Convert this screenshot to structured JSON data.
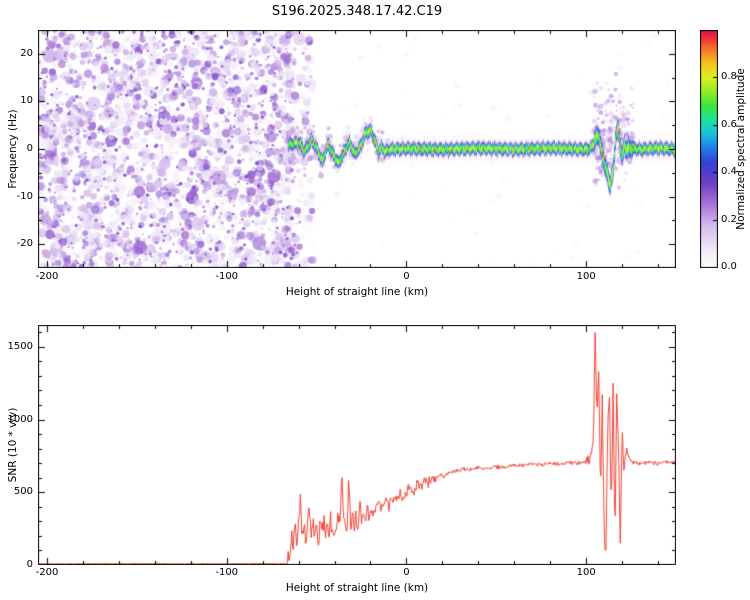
{
  "title": "S196.2025.348.17.42.C19",
  "chart_data": [
    {
      "type": "heatmap",
      "name": "spectrogram-panel",
      "xlabel": "Height of straight line (km)",
      "ylabel": "Frequency (Hz)",
      "xlim": [
        -205,
        150
      ],
      "ylim": [
        -25,
        25
      ],
      "xticks": [
        -200,
        -100,
        0,
        100
      ],
      "yticks": [
        -20,
        -10,
        0,
        10,
        20
      ],
      "xminor": 20,
      "yminor": 5,
      "colorbar": {
        "label": "Normalized spectral amplitude",
        "ticks": [
          0.0,
          0.2,
          0.4,
          0.6,
          0.8
        ],
        "range": [
          0,
          1
        ]
      },
      "colormap_stops": [
        [
          0.0,
          "#ffffff"
        ],
        [
          0.08,
          "#f0e9f8"
        ],
        [
          0.18,
          "#d4b9ec"
        ],
        [
          0.28,
          "#a06ad4"
        ],
        [
          0.36,
          "#6c3ec6"
        ],
        [
          0.44,
          "#3440d6"
        ],
        [
          0.5,
          "#2079e8"
        ],
        [
          0.56,
          "#16c0e0"
        ],
        [
          0.62,
          "#1fdf9f"
        ],
        [
          0.68,
          "#3ae43c"
        ],
        [
          0.74,
          "#8fec28"
        ],
        [
          0.8,
          "#d8f022"
        ],
        [
          0.86,
          "#f4c61e"
        ],
        [
          0.92,
          "#f4772a"
        ],
        [
          0.97,
          "#ee2c3c"
        ],
        [
          1.0,
          "#d41648"
        ]
      ],
      "noise_region": {
        "x_range": [
          -205,
          -62
        ],
        "density": 2600,
        "value_range": [
          0.04,
          0.34
        ]
      },
      "signal": {
        "x_range": [
          -66,
          150
        ],
        "core_sigma_hz": 0.9,
        "halo_sigma_hz": 2.8,
        "trace": [
          [
            -66,
            1
          ],
          [
            -60,
            1.5
          ],
          [
            -57,
            -0.5
          ],
          [
            -53,
            2
          ],
          [
            -50,
            0
          ],
          [
            -47,
            -2.5
          ],
          [
            -44,
            1
          ],
          [
            -41,
            -1
          ],
          [
            -38,
            -3
          ],
          [
            -35,
            -0.5
          ],
          [
            -32,
            1.5
          ],
          [
            -29,
            -1
          ],
          [
            -26,
            0.5
          ],
          [
            -23,
            3.5
          ],
          [
            -20,
            4
          ],
          [
            -18,
            2
          ],
          [
            -16,
            -0.5
          ],
          [
            -14,
            0.5
          ],
          [
            -12,
            -0.5
          ],
          [
            -10,
            0
          ],
          [
            0,
            0.2
          ],
          [
            20,
            0
          ],
          [
            40,
            0.3
          ],
          [
            60,
            0
          ],
          [
            80,
            0.3
          ],
          [
            100,
            0
          ],
          [
            103,
            0.5
          ],
          [
            105,
            2.5
          ],
          [
            107,
            3
          ],
          [
            108,
            0
          ],
          [
            110,
            -3
          ],
          [
            112,
            -6
          ],
          [
            113,
            -7.5
          ],
          [
            115,
            -4
          ],
          [
            116,
            2
          ],
          [
            117,
            4.5
          ],
          [
            118,
            3
          ],
          [
            119,
            0
          ],
          [
            120,
            -1.5
          ],
          [
            121,
            1
          ],
          [
            122,
            0
          ],
          [
            125,
            0.3
          ],
          [
            130,
            0
          ],
          [
            140,
            0.3
          ],
          [
            150,
            0
          ]
        ]
      },
      "disturbance": {
        "x_range": [
          104,
          126
        ]
      }
    },
    {
      "type": "line",
      "name": "snr-panel",
      "xlabel": "Height of straight line (km)",
      "ylabel": "SNR (10 * v/v)",
      "xlim": [
        -205,
        150
      ],
      "ylim": [
        0,
        1650
      ],
      "xticks": [
        -200,
        -100,
        0,
        100
      ],
      "yticks": [
        0,
        500,
        1000,
        1500
      ],
      "xminor": 20,
      "yminor": 100,
      "line_color": "#ee3426",
      "points": [
        [
          -205,
          8
        ],
        [
          -150,
          9
        ],
        [
          -100,
          8
        ],
        [
          -80,
          9
        ],
        [
          -70,
          8
        ],
        [
          -67,
          10
        ],
        [
          -65,
          60
        ],
        [
          -64,
          220
        ],
        [
          -63,
          90
        ],
        [
          -62,
          330
        ],
        [
          -61,
          120
        ],
        [
          -60,
          300
        ],
        [
          -59,
          460
        ],
        [
          -58,
          150
        ],
        [
          -57,
          310
        ],
        [
          -56,
          90
        ],
        [
          -55,
          340
        ],
        [
          -54,
          420
        ],
        [
          -53,
          140
        ],
        [
          -52,
          310
        ],
        [
          -51,
          180
        ],
        [
          -50,
          260
        ],
        [
          -49,
          120
        ],
        [
          -48,
          300
        ],
        [
          -47,
          200
        ],
        [
          -46,
          330
        ],
        [
          -45,
          150
        ],
        [
          -44,
          280
        ],
        [
          -43,
          210
        ],
        [
          -42,
          320
        ],
        [
          -41,
          190
        ],
        [
          -40,
          280
        ],
        [
          -39,
          240
        ],
        [
          -38,
          330
        ],
        [
          -37,
          260
        ],
        [
          -36,
          640
        ],
        [
          -35,
          320
        ],
        [
          -34,
          240
        ],
        [
          -33,
          300
        ],
        [
          -32,
          610
        ],
        [
          -31,
          300
        ],
        [
          -30,
          340
        ],
        [
          -29,
          260
        ],
        [
          -28,
          350
        ],
        [
          -27,
          280
        ],
        [
          -26,
          390
        ],
        [
          -25,
          310
        ],
        [
          -24,
          360
        ],
        [
          -23,
          290
        ],
        [
          -22,
          400
        ],
        [
          -21,
          330
        ],
        [
          -20,
          370
        ],
        [
          -18,
          340
        ],
        [
          -16,
          420
        ],
        [
          -14,
          370
        ],
        [
          -12,
          450
        ],
        [
          -10,
          400
        ],
        [
          -8,
          470
        ],
        [
          -6,
          430
        ],
        [
          -4,
          500
        ],
        [
          -2,
          460
        ],
        [
          0,
          500
        ],
        [
          2,
          530
        ],
        [
          4,
          490
        ],
        [
          6,
          560
        ],
        [
          8,
          530
        ],
        [
          10,
          580
        ],
        [
          12,
          550
        ],
        [
          14,
          600
        ],
        [
          16,
          575
        ],
        [
          18,
          620
        ],
        [
          20,
          600
        ],
        [
          24,
          640
        ],
        [
          28,
          650
        ],
        [
          32,
          660
        ],
        [
          36,
          655
        ],
        [
          40,
          670
        ],
        [
          44,
          660
        ],
        [
          48,
          675
        ],
        [
          52,
          670
        ],
        [
          56,
          680
        ],
        [
          60,
          690
        ],
        [
          65,
          685
        ],
        [
          70,
          695
        ],
        [
          75,
          690
        ],
        [
          80,
          700
        ],
        [
          85,
          695
        ],
        [
          90,
          705
        ],
        [
          95,
          700
        ],
        [
          100,
          710
        ],
        [
          102,
          720
        ],
        [
          103,
          760
        ],
        [
          104,
          820
        ],
        [
          105,
          1620
        ],
        [
          106,
          1000
        ],
        [
          107,
          1350
        ],
        [
          108,
          500
        ],
        [
          109,
          1150
        ],
        [
          110,
          200
        ],
        [
          111,
          70
        ],
        [
          112,
          950
        ],
        [
          113,
          1180
        ],
        [
          114,
          350
        ],
        [
          115,
          1230
        ],
        [
          116,
          160
        ],
        [
          117,
          1200
        ],
        [
          118,
          850
        ],
        [
          119,
          120
        ],
        [
          120,
          980
        ],
        [
          121,
          640
        ],
        [
          122,
          800
        ],
        [
          124,
          730
        ],
        [
          126,
          700
        ],
        [
          128,
          710
        ],
        [
          130,
          695
        ],
        [
          135,
          705
        ],
        [
          140,
          695
        ],
        [
          145,
          710
        ],
        [
          150,
          700
        ]
      ],
      "noise_segments": [
        [
          -205,
          -67,
          3
        ],
        [
          -67,
          -20,
          70
        ],
        [
          -20,
          20,
          45
        ],
        [
          20,
          100,
          15
        ],
        [
          100,
          123,
          40
        ],
        [
          123,
          150,
          15
        ]
      ]
    }
  ]
}
